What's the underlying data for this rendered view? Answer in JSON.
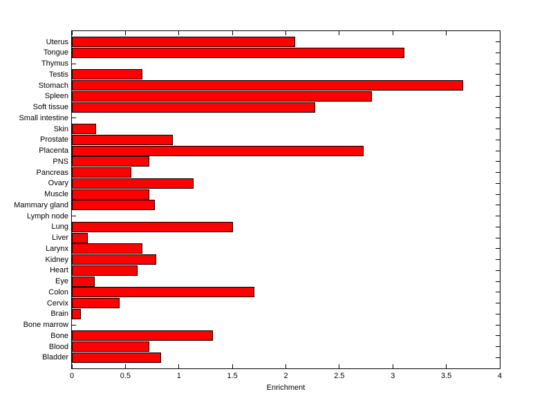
{
  "chart_data": {
    "type": "bar",
    "orientation": "horizontal",
    "title": "",
    "xlabel": "Enrichment",
    "ylabel": "",
    "xlim": [
      0,
      4
    ],
    "xticks": [
      0,
      0.5,
      1,
      1.5,
      2,
      2.5,
      3,
      3.5,
      4
    ],
    "xtick_labels": [
      "0",
      "0.5",
      "1",
      "1.5",
      "2",
      "2.5",
      "3",
      "3.5",
      "4"
    ],
    "categories": [
      "Uterus",
      "Tongue",
      "Thymus",
      "Testis",
      "Stomach",
      "Spleen",
      "Soft tissue",
      "Small intestine",
      "Skin",
      "Prostate",
      "Placenta",
      "PNS",
      "Pancreas",
      "Ovary",
      "Muscle",
      "Mammary gland",
      "Lymph node",
      "Lung",
      "Liver",
      "Larynx",
      "Kidney",
      "Heart",
      "Eye",
      "Colon",
      "Cervix",
      "Brain",
      "Bone marrow",
      "Bone",
      "Blood",
      "Bladder"
    ],
    "values": [
      2.08,
      3.1,
      0,
      0.65,
      3.65,
      2.8,
      2.27,
      0,
      0.22,
      0.94,
      2.72,
      0.72,
      0.55,
      1.13,
      0.72,
      0.77,
      0,
      1.5,
      0.14,
      0.65,
      0.78,
      0.61,
      0.21,
      1.7,
      0.44,
      0.08,
      0,
      1.31,
      0.72,
      0.83
    ],
    "bar_color": "#ff0000",
    "bar_edge_color": "#000000",
    "axis_color": "#000000",
    "background": "#ffffff",
    "grid": false,
    "legend": null
  }
}
